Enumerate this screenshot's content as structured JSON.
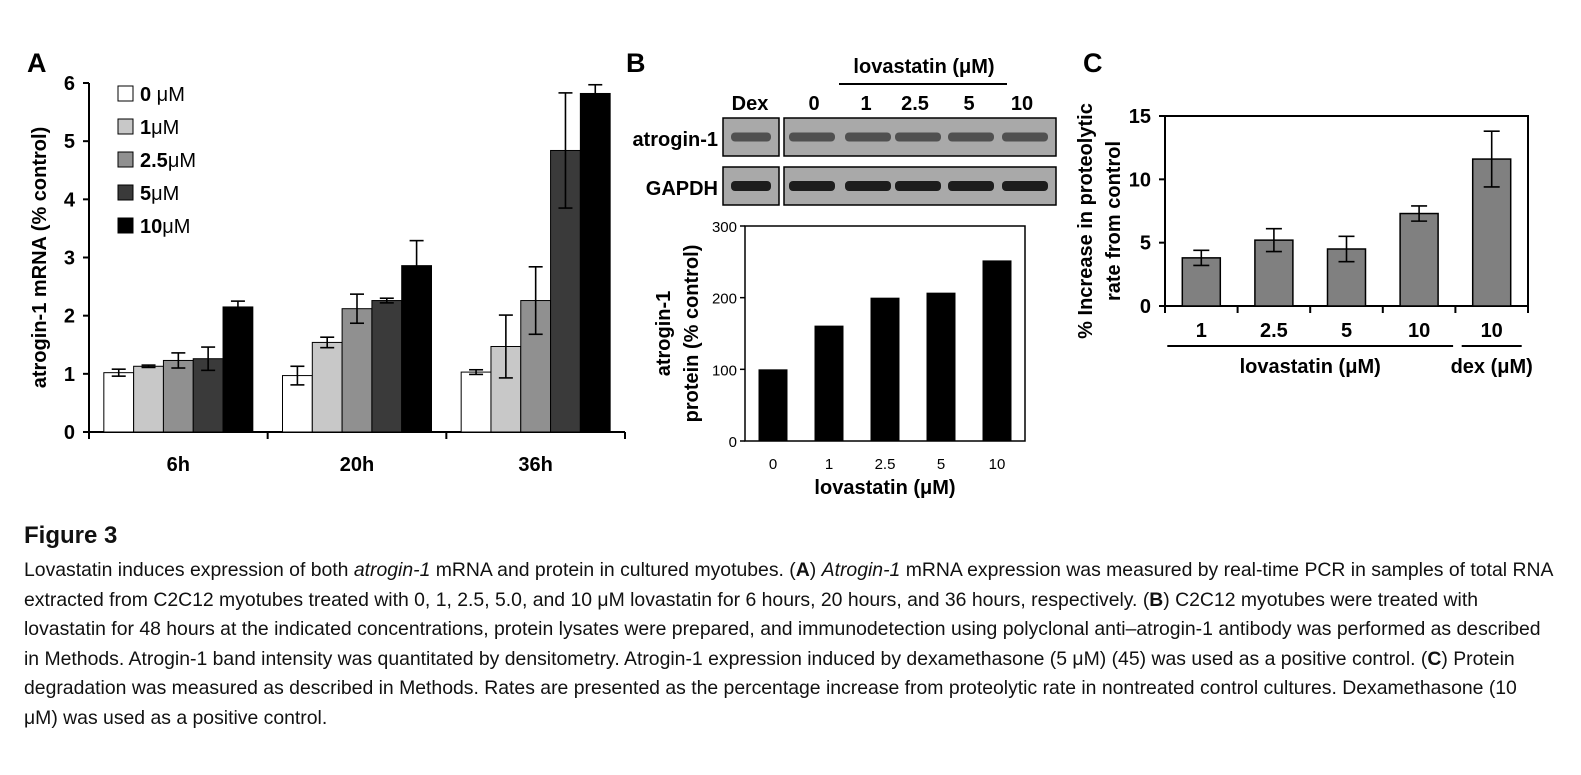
{
  "chart_data": [
    {
      "panel": "A",
      "type": "bar",
      "ylabel": "atrogin-1 mRNA (% control)",
      "ylim": [
        0,
        6
      ],
      "yticks": [
        "0",
        "1",
        "2",
        "3",
        "4",
        "5",
        "6"
      ],
      "categories": [
        "6h",
        "20h",
        "36h"
      ],
      "legend_position": "top-left",
      "series": [
        {
          "name": "0 μM",
          "legend_num": "0",
          "legend_unit": " μM",
          "color": "#ffffff",
          "values": [
            1.02,
            0.97,
            1.03
          ],
          "errors": [
            0.06,
            0.16,
            0.04
          ]
        },
        {
          "name": "1μM",
          "legend_num": "1",
          "legend_unit": "μM",
          "color": "#c8c8c8",
          "values": [
            1.13,
            1.54,
            1.47
          ],
          "errors": [
            0.02,
            0.09,
            0.54
          ]
        },
        {
          "name": "2.5μM",
          "legend_num": "2.5",
          "legend_unit": "μM",
          "color": "#909090",
          "values": [
            1.23,
            2.12,
            2.26
          ],
          "errors": [
            0.13,
            0.25,
            0.58
          ]
        },
        {
          "name": "5μM",
          "legend_num": "5",
          "legend_unit": "μM",
          "color": "#3a3a3a",
          "values": [
            1.26,
            2.26,
            4.84
          ],
          "errors": [
            0.2,
            0.04,
            0.99
          ]
        },
        {
          "name": "10μM",
          "legend_num": "10",
          "legend_unit": "μM",
          "color": "#000000",
          "values": [
            2.15,
            2.86,
            5.82
          ],
          "errors": [
            0.1,
            0.43,
            0.15
          ]
        }
      ]
    },
    {
      "panel": "B",
      "type": "bar",
      "ylabel": "atrogin-1 protein (% control)",
      "ylabel_lines": [
        "atrogin-1",
        "protein (% control)"
      ],
      "xlabel": "lovastatin (μM)",
      "ylim": [
        0,
        300
      ],
      "yticks": [
        "0",
        "100",
        "200",
        "300"
      ],
      "categories": [
        "0",
        "1",
        "2.5",
        "5",
        "10"
      ],
      "values": [
        100,
        161,
        200,
        207,
        252
      ],
      "color": "#000000",
      "blot": {
        "group_label": "lovastatin (μM)",
        "lanes": [
          "Dex",
          "0",
          "1",
          "2.5",
          "5",
          "10"
        ],
        "rows": [
          "atrogin-1",
          "GAPDH"
        ]
      }
    },
    {
      "panel": "C",
      "type": "bar",
      "ylabel": "% Increase in proteolytic rate from control",
      "ylabel_lines": [
        "% Increase in proteolytic",
        "rate from control"
      ],
      "ylim": [
        0,
        15
      ],
      "yticks": [
        "0",
        "5",
        "10",
        "15"
      ],
      "categories": [
        "1",
        "2.5",
        "5",
        "10",
        "10"
      ],
      "values": [
        3.8,
        5.2,
        4.5,
        7.3,
        11.6
      ],
      "errors": [
        0.6,
        0.9,
        1.0,
        0.6,
        2.2
      ],
      "color": "#808080",
      "groups": [
        {
          "label": "lovastatin (μM)",
          "from": 0,
          "to": 3
        },
        {
          "label": "dex (μM)",
          "from": 4,
          "to": 4
        }
      ]
    }
  ],
  "caption": {
    "title": "Figure 3",
    "body_parts": [
      {
        "t": "Lovastatin induces expression of both ",
        "s": "n"
      },
      {
        "t": "atrogin-1",
        "s": "i"
      },
      {
        "t": " mRNA and protein in cultured myotubes. (",
        "s": "n"
      },
      {
        "t": "A",
        "s": "b"
      },
      {
        "t": ") ",
        "s": "n"
      },
      {
        "t": "Atrogin-1",
        "s": "i"
      },
      {
        "t": " mRNA expression was measured by real-time PCR in samples of total RNA extracted from C2C12 myotubes treated with 0, 1, 2.5, 5.0, and 10 μM lovastatin for 6 hours, 20 hours, and 36 hours, respectively. (",
        "s": "n"
      },
      {
        "t": "B",
        "s": "b"
      },
      {
        "t": ") C2C12 myotubes were treated with lovastatin for 48 hours at the indicated concentrations, protein lysates were prepared, and immunodetection using polyclonal anti–atrogin-1 antibody was performed as described in Methods. Atrogin-1 band intensity was quantitated by densitometry. Atrogin-1 expression induced by dexamethasone (5 μM) (45) was used as a positive control. (",
        "s": "n"
      },
      {
        "t": "C",
        "s": "b"
      },
      {
        "t": ") Protein degradation was measured as described in Methods. Rates are presented as the percentage increase from proteolytic rate in nontreated control cultures. Dexamethasone (10 μM) was used as a positive control.",
        "s": "n"
      }
    ]
  }
}
